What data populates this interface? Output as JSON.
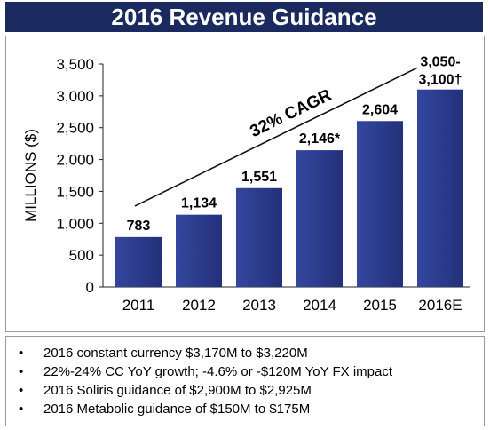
{
  "banner_title": "2016 Revenue Guidance",
  "colors": {
    "banner": "#1b2a5e",
    "bar": "#23307a",
    "bar_light": "#34479e"
  },
  "chart_data": {
    "type": "bar",
    "categories": [
      "2011",
      "2012",
      "2013",
      "2014",
      "2015",
      "2016E"
    ],
    "values": [
      783,
      1134,
      1551,
      2146,
      2604,
      3100
    ],
    "range_low_2016E": 3050,
    "data_labels": [
      "783",
      "1,134",
      "1,551",
      "2,146*",
      "2,604",
      "3,050-3,100†"
    ],
    "ylabel": "MILLIONS ($)",
    "ylim": [
      0,
      3500
    ],
    "yticks": [
      0,
      500,
      1000,
      1500,
      2000,
      2500,
      3000,
      3500
    ],
    "ytick_labels": [
      "0",
      "500",
      "1,000",
      "1,500",
      "2,000",
      "2,500",
      "3,000",
      "3,500"
    ],
    "annotation": "32% CAGR",
    "grid": false
  },
  "bullets": [
    "2016 constant currency $3,170M to $3,220M",
    "22%-24% CC YoY growth; -4.6% or -$120M YoY FX impact",
    "2016 Soliris guidance of $2,900M to $2,925M",
    "2016 Metabolic guidance of $150M to $175M"
  ]
}
